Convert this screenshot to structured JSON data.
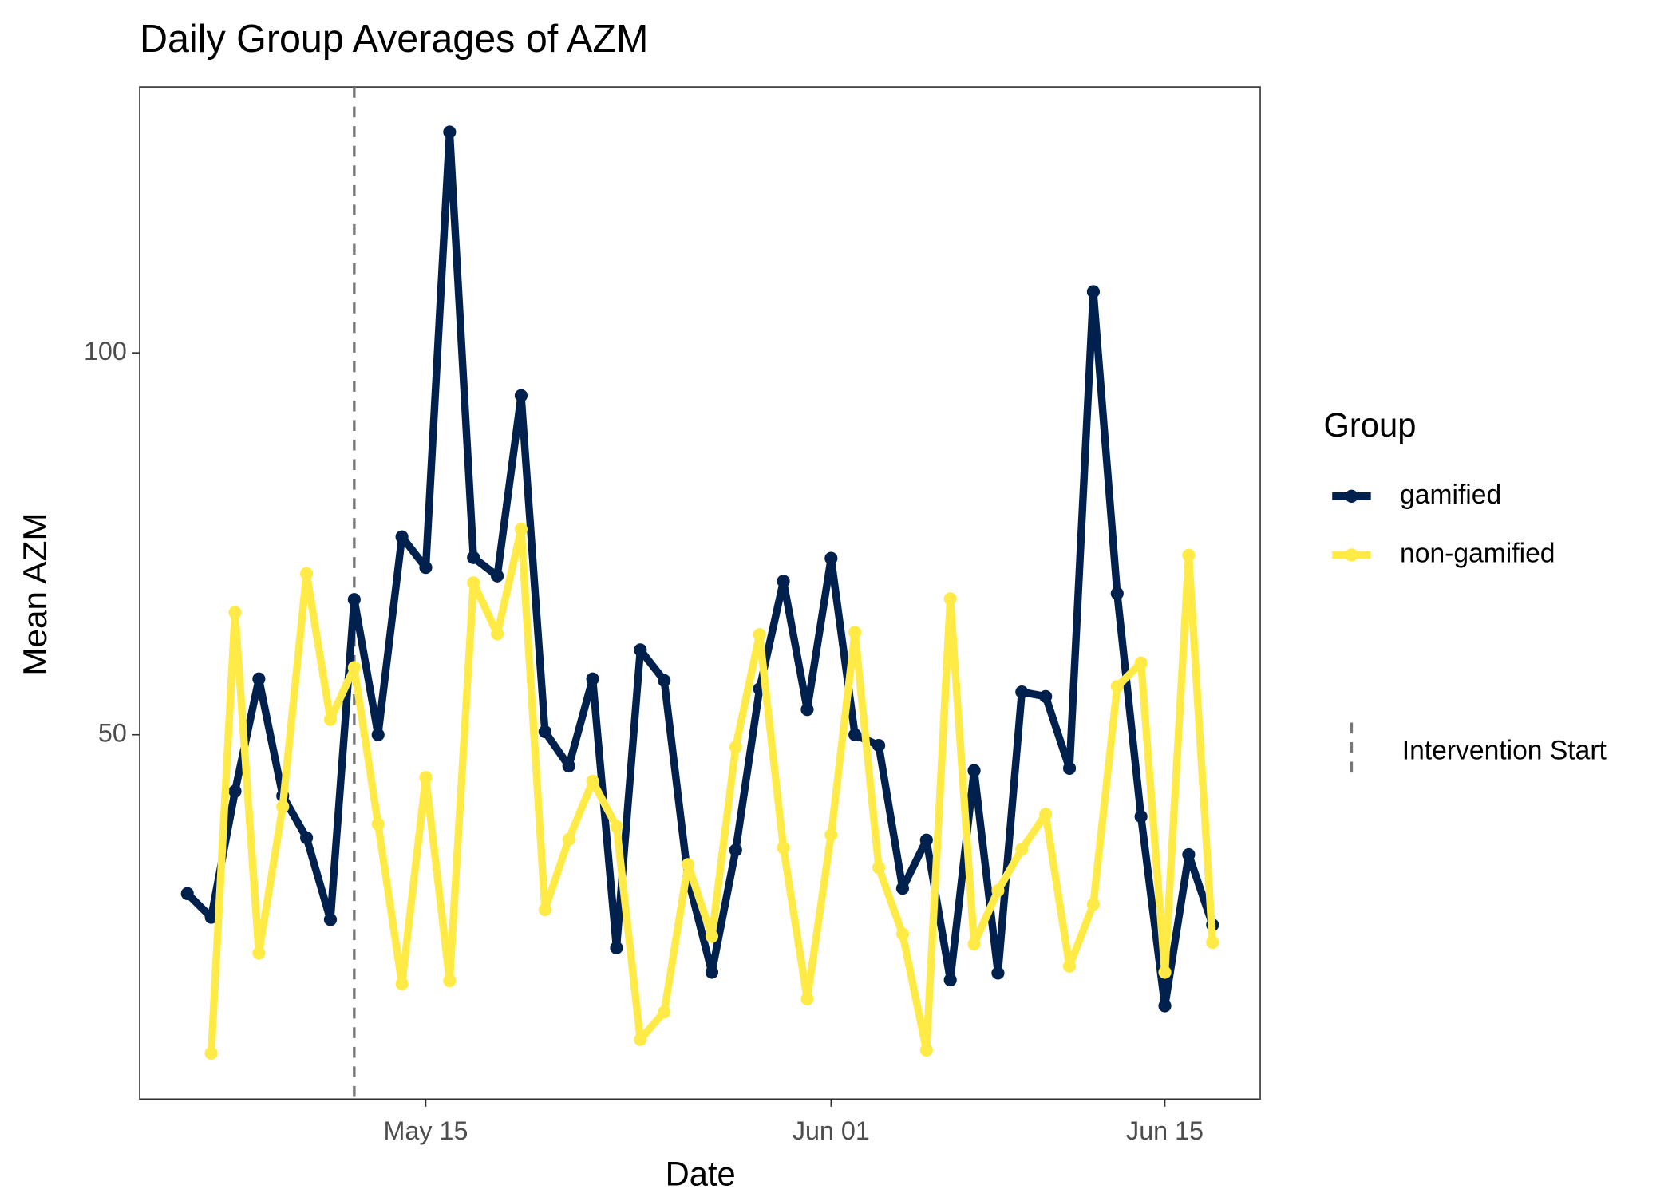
{
  "chart_data": {
    "type": "line",
    "title": "Daily Group Averages of AZM",
    "x_label": "Date",
    "y_label": "Mean AZM",
    "x": [
      "05-05",
      "05-06",
      "05-07",
      "05-08",
      "05-09",
      "05-10",
      "05-11",
      "05-12",
      "05-13",
      "05-14",
      "05-15",
      "05-16",
      "05-17",
      "05-18",
      "05-19",
      "05-20",
      "05-21",
      "05-22",
      "05-23",
      "05-24",
      "05-25",
      "05-26",
      "05-27",
      "05-28",
      "05-29",
      "05-30",
      "05-31",
      "06-01",
      "06-02",
      "06-03",
      "06-04",
      "06-05",
      "06-06",
      "06-07",
      "06-08",
      "06-09",
      "06-10",
      "06-11",
      "06-12",
      "06-13",
      "06-14",
      "06-15",
      "06-16",
      "06-17"
    ],
    "series": [
      {
        "name": "gamified",
        "color": "#00204D",
        "values": [
          29.2,
          26.1,
          42.6,
          57.3,
          42.0,
          36.5,
          25.8,
          67.7,
          50.0,
          75.9,
          71.9,
          128.9,
          73.2,
          70.8,
          94.4,
          50.4,
          45.9,
          57.3,
          22.1,
          61.1,
          57.1,
          31.2,
          18.9,
          34.9,
          56.0,
          70.1,
          53.3,
          73.1,
          50.0,
          48.6,
          29.9,
          36.2,
          17.9,
          45.3,
          18.8,
          55.6,
          55.0,
          45.6,
          108.0,
          68.5,
          39.3,
          14.5,
          34.3,
          25.1
        ]
      },
      {
        "name": "non-gamified",
        "color": "#FFEA46",
        "values": [
          null,
          8.3,
          66.0,
          21.4,
          40.6,
          71.1,
          52.0,
          58.8,
          38.3,
          17.4,
          44.4,
          17.8,
          69.9,
          63.2,
          76.9,
          27.1,
          36.3,
          43.9,
          38.0,
          10.1,
          13.7,
          33.0,
          23.6,
          48.4,
          63.1,
          35.2,
          15.4,
          36.9,
          63.4,
          32.6,
          23.9,
          8.7,
          67.8,
          22.6,
          29.6,
          35.0,
          39.6,
          19.7,
          27.8,
          56.3,
          59.4,
          18.9,
          73.5,
          22.8
        ]
      }
    ],
    "xlim": [
      "05-03",
      "06-19"
    ],
    "xticks": [
      {
        "value": "05-15",
        "label": "May 15"
      },
      {
        "value": "06-01",
        "label": "Jun 01"
      },
      {
        "value": "06-15",
        "label": "Jun 15"
      }
    ],
    "ylim": [
      2.3,
      134.8
    ],
    "yticks": [
      50,
      100
    ],
    "grid": false,
    "legend_title": "Group",
    "legend_position": "right",
    "vline": {
      "x": "05-12",
      "label": "Intervention Start",
      "color": "#777777"
    }
  }
}
